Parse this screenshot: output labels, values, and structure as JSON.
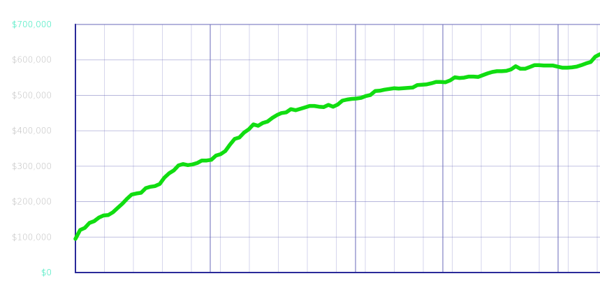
{
  "colors": {
    "line": "#11dd11",
    "axis": "#2a2a99",
    "grid_major": "#6a6ab8",
    "grid_minor": "#d6d6ec",
    "tick_label": "#bdbdbd",
    "tick_label_accent": "#1ee6b4"
  },
  "chart_data": {
    "type": "line",
    "title": "",
    "xlabel": "",
    "ylabel": "",
    "ylim": [
      0,
      700000
    ],
    "y_ticks": [
      0,
      100000,
      200000,
      300000,
      400000,
      500000,
      600000,
      700000
    ],
    "y_tick_labels": [
      "$0",
      "$100,000",
      "$200,000",
      "$300,000",
      "$400,000",
      "$500,000",
      "$600,000",
      "$700,000"
    ],
    "accent_tick_labels": [
      "$0",
      "$700,000"
    ],
    "x_major_gridlines": 4,
    "x_minor_per_major": 4,
    "grid": true,
    "legend": "none",
    "series": [
      {
        "values": [
          95000,
          120000,
          126000,
          140000,
          145000,
          155000,
          161000,
          162000,
          170000,
          182000,
          194000,
          208000,
          220000,
          223000,
          225000,
          238000,
          242000,
          244000,
          250000,
          268000,
          280000,
          288000,
          302000,
          306000,
          303000,
          305000,
          309000,
          316000,
          316000,
          318000,
          330000,
          334000,
          343000,
          361000,
          377000,
          381000,
          395000,
          404000,
          418000,
          414000,
          422000,
          426000,
          436000,
          444000,
          450000,
          452000,
          461000,
          458000,
          462000,
          466000,
          470000,
          470000,
          468000,
          467000,
          473000,
          468000,
          474000,
          485000,
          488000,
          490000,
          491000,
          493000,
          498000,
          501000,
          512000,
          513000,
          516000,
          518000,
          520000,
          519000,
          520000,
          521000,
          522000,
          529000,
          530000,
          531000,
          534000,
          538000,
          538000,
          537000,
          542000,
          551000,
          549000,
          550000,
          553000,
          553000,
          552000,
          557000,
          562000,
          566000,
          568000,
          568000,
          569000,
          573000,
          582000,
          575000,
          575000,
          580000,
          585000,
          585000,
          584000,
          584000,
          584000,
          581000,
          578000,
          578000,
          579000,
          581000,
          585000,
          590000,
          594000,
          609000,
          616000
        ]
      }
    ]
  }
}
